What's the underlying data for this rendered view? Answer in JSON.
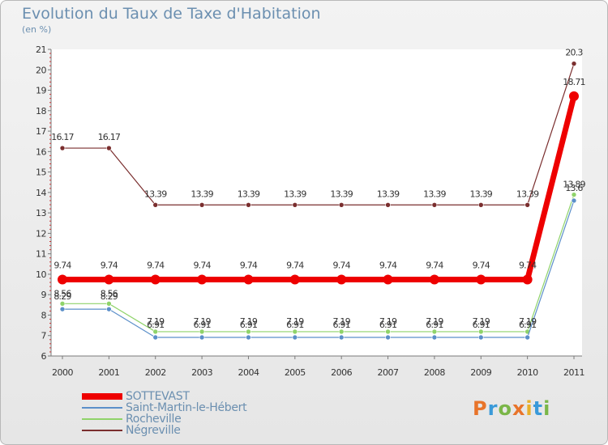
{
  "title": "Evolution du Taux de Taxe d'Habitation",
  "subtitle": "(en %)",
  "logo": {
    "text": "Proxiti",
    "colors": [
      "#e8742a",
      "#3a9ad9",
      "#7ab648",
      "#e8742a",
      "#e8b02a",
      "#3a9ad9",
      "#7ab648"
    ]
  },
  "chart_data": {
    "type": "line",
    "x": [
      "2000",
      "2001",
      "2002",
      "2003",
      "2004",
      "2005",
      "2006",
      "2007",
      "2008",
      "2009",
      "2010",
      "2011"
    ],
    "ylim": [
      6,
      21
    ],
    "yticks": [
      6,
      7,
      8,
      9,
      10,
      11,
      12,
      13,
      14,
      15,
      16,
      17,
      18,
      19,
      20,
      21
    ],
    "grid": false,
    "legend_position": "bottom-left",
    "series": [
      {
        "name": "Négreville",
        "color": "#7a2e2e",
        "values": [
          16.17,
          16.17,
          13.39,
          13.39,
          13.39,
          13.39,
          13.39,
          13.39,
          13.39,
          13.39,
          13.39,
          20.3
        ],
        "labels": [
          "16.17",
          "16.17",
          "13.39",
          "13.39",
          "13.39",
          "13.39",
          "13.39",
          "13.39",
          "13.39",
          "13.39",
          "13.39",
          "20.3"
        ]
      },
      {
        "name": "Rocheville",
        "color": "#8fd36a",
        "values": [
          8.56,
          8.56,
          7.19,
          7.19,
          7.19,
          7.19,
          7.19,
          7.19,
          7.19,
          7.19,
          7.19,
          13.89
        ],
        "labels": [
          "8.56",
          "8.56",
          "7.19",
          "7.19",
          "7.19",
          "7.19",
          "7.19",
          "7.19",
          "7.19",
          "7.19",
          "7.19",
          "13.89"
        ]
      },
      {
        "name": "Saint-Martin-le-Hébert",
        "color": "#5b8fc9",
        "values": [
          8.29,
          8.29,
          6.91,
          6.91,
          6.91,
          6.91,
          6.91,
          6.91,
          6.91,
          6.91,
          6.91,
          13.6
        ],
        "labels": [
          "8.29",
          "8.29",
          "6.91",
          "6.91",
          "6.91",
          "6.91",
          "6.91",
          "6.91",
          "6.91",
          "6.91",
          "6.91",
          "13.6"
        ]
      },
      {
        "name": "SOTTEVAST",
        "color": "#ee0000",
        "values": [
          9.74,
          9.74,
          9.74,
          9.74,
          9.74,
          9.74,
          9.74,
          9.74,
          9.74,
          9.74,
          9.74,
          18.71
        ],
        "labels": [
          "9.74",
          "9.74",
          "9.74",
          "9.74",
          "9.74",
          "9.74",
          "9.74",
          "9.74",
          "9.74",
          "9.74",
          "9.74",
          "18.71"
        ]
      }
    ]
  },
  "legend": {
    "items": [
      {
        "name": "SOTTEVAST",
        "color": "#ee0000"
      },
      {
        "name": "Saint-Martin-le-Hébert",
        "color": "#5b8fc9"
      },
      {
        "name": "Rocheville",
        "color": "#8fd36a"
      },
      {
        "name": "Négreville",
        "color": "#7a2e2e"
      }
    ]
  }
}
